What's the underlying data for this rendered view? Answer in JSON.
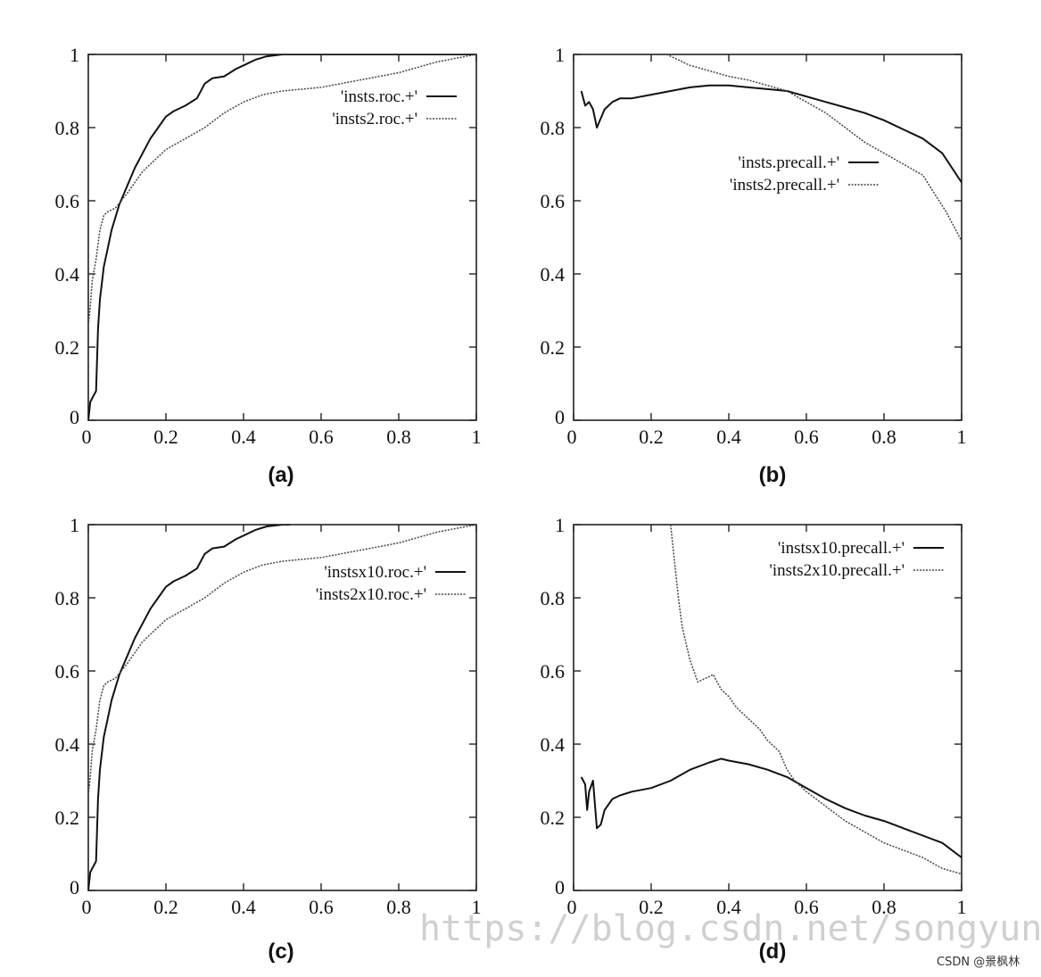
{
  "chart_data": [
    {
      "type": "line",
      "panel_label": "(a)",
      "xlim": [
        0,
        1
      ],
      "ylim": [
        0,
        1
      ],
      "xticks": [
        "0",
        "0.2",
        "0.4",
        "0.6",
        "0.8",
        "1"
      ],
      "yticks": [
        "0",
        "0.2",
        "0.4",
        "0.6",
        "0.8",
        "1"
      ],
      "legend_position": "top-right",
      "series": [
        {
          "name": "'insts.roc.+'",
          "style": "solid",
          "points": [
            [
              0,
              0
            ],
            [
              0.005,
              0.05
            ],
            [
              0.02,
              0.08
            ],
            [
              0.025,
              0.25
            ],
            [
              0.03,
              0.33
            ],
            [
              0.04,
              0.42
            ],
            [
              0.05,
              0.47
            ],
            [
              0.06,
              0.52
            ],
            [
              0.08,
              0.59
            ],
            [
              0.1,
              0.64
            ],
            [
              0.12,
              0.69
            ],
            [
              0.14,
              0.73
            ],
            [
              0.16,
              0.77
            ],
            [
              0.18,
              0.8
            ],
            [
              0.2,
              0.83
            ],
            [
              0.22,
              0.845
            ],
            [
              0.25,
              0.86
            ],
            [
              0.28,
              0.88
            ],
            [
              0.3,
              0.92
            ],
            [
              0.32,
              0.935
            ],
            [
              0.35,
              0.94
            ],
            [
              0.38,
              0.96
            ],
            [
              0.4,
              0.97
            ],
            [
              0.43,
              0.985
            ],
            [
              0.46,
              0.995
            ],
            [
              0.5,
              1
            ],
            [
              0.52,
              1
            ],
            [
              1,
              1
            ]
          ]
        },
        {
          "name": "'insts2.roc.+'",
          "style": "dotted",
          "points": [
            [
              0,
              0.26
            ],
            [
              0.005,
              0.31
            ],
            [
              0.01,
              0.38
            ],
            [
              0.02,
              0.44
            ],
            [
              0.03,
              0.52
            ],
            [
              0.04,
              0.56
            ],
            [
              0.05,
              0.57
            ],
            [
              0.07,
              0.58
            ],
            [
              0.1,
              0.62
            ],
            [
              0.12,
              0.65
            ],
            [
              0.14,
              0.68
            ],
            [
              0.16,
              0.7
            ],
            [
              0.2,
              0.74
            ],
            [
              0.25,
              0.77
            ],
            [
              0.3,
              0.8
            ],
            [
              0.35,
              0.84
            ],
            [
              0.4,
              0.87
            ],
            [
              0.45,
              0.89
            ],
            [
              0.5,
              0.9
            ],
            [
              0.6,
              0.91
            ],
            [
              0.7,
              0.93
            ],
            [
              0.8,
              0.95
            ],
            [
              0.9,
              0.98
            ],
            [
              0.95,
              0.99
            ],
            [
              1,
              1
            ]
          ]
        }
      ]
    },
    {
      "type": "line",
      "panel_label": "(b)",
      "xlim": [
        0,
        1
      ],
      "ylim": [
        0,
        1
      ],
      "xticks": [
        "0",
        "0.2",
        "0.4",
        "0.6",
        "0.8",
        "1"
      ],
      "yticks": [
        "0",
        "0.2",
        "0.4",
        "0.6",
        "0.8",
        "1"
      ],
      "legend_position": "center-right",
      "series": [
        {
          "name": "'insts.precall.+'",
          "style": "solid",
          "points": [
            [
              0.02,
              0.9
            ],
            [
              0.03,
              0.86
            ],
            [
              0.04,
              0.87
            ],
            [
              0.05,
              0.85
            ],
            [
              0.06,
              0.8
            ],
            [
              0.08,
              0.85
            ],
            [
              0.1,
              0.87
            ],
            [
              0.12,
              0.88
            ],
            [
              0.15,
              0.88
            ],
            [
              0.2,
              0.89
            ],
            [
              0.25,
              0.9
            ],
            [
              0.3,
              0.91
            ],
            [
              0.35,
              0.915
            ],
            [
              0.4,
              0.915
            ],
            [
              0.45,
              0.91
            ],
            [
              0.5,
              0.905
            ],
            [
              0.55,
              0.9
            ],
            [
              0.6,
              0.885
            ],
            [
              0.65,
              0.87
            ],
            [
              0.7,
              0.855
            ],
            [
              0.75,
              0.84
            ],
            [
              0.8,
              0.82
            ],
            [
              0.85,
              0.795
            ],
            [
              0.9,
              0.77
            ],
            [
              0.95,
              0.73
            ],
            [
              1,
              0.65
            ]
          ]
        },
        {
          "name": "'insts2.precall.+'",
          "style": "dotted",
          "points": [
            [
              0.24,
              1
            ],
            [
              0.26,
              0.99
            ],
            [
              0.3,
              0.97
            ],
            [
              0.35,
              0.955
            ],
            [
              0.4,
              0.94
            ],
            [
              0.45,
              0.93
            ],
            [
              0.5,
              0.915
            ],
            [
              0.55,
              0.9
            ],
            [
              0.6,
              0.87
            ],
            [
              0.65,
              0.84
            ],
            [
              0.7,
              0.8
            ],
            [
              0.75,
              0.76
            ],
            [
              0.8,
              0.73
            ],
            [
              0.85,
              0.7
            ],
            [
              0.9,
              0.67
            ],
            [
              0.93,
              0.62
            ],
            [
              0.96,
              0.57
            ],
            [
              0.98,
              0.53
            ],
            [
              1,
              0.49
            ]
          ]
        }
      ]
    },
    {
      "type": "line",
      "panel_label": "(c)",
      "xlim": [
        0,
        1
      ],
      "ylim": [
        0,
        1
      ],
      "xticks": [
        "0",
        "0.2",
        "0.4",
        "0.6",
        "0.8",
        "1"
      ],
      "yticks": [
        "0",
        "0.2",
        "0.4",
        "0.6",
        "0.8",
        "1"
      ],
      "legend_position": "top-right",
      "series": [
        {
          "name": "'instsx10.roc.+'",
          "style": "solid",
          "points": [
            [
              0,
              0
            ],
            [
              0.005,
              0.05
            ],
            [
              0.02,
              0.08
            ],
            [
              0.025,
              0.25
            ],
            [
              0.03,
              0.33
            ],
            [
              0.04,
              0.42
            ],
            [
              0.05,
              0.47
            ],
            [
              0.06,
              0.52
            ],
            [
              0.08,
              0.59
            ],
            [
              0.1,
              0.64
            ],
            [
              0.12,
              0.69
            ],
            [
              0.14,
              0.73
            ],
            [
              0.16,
              0.77
            ],
            [
              0.18,
              0.8
            ],
            [
              0.2,
              0.83
            ],
            [
              0.22,
              0.845
            ],
            [
              0.25,
              0.86
            ],
            [
              0.28,
              0.88
            ],
            [
              0.3,
              0.92
            ],
            [
              0.32,
              0.935
            ],
            [
              0.35,
              0.94
            ],
            [
              0.38,
              0.96
            ],
            [
              0.4,
              0.97
            ],
            [
              0.43,
              0.985
            ],
            [
              0.46,
              0.995
            ],
            [
              0.5,
              1
            ],
            [
              0.52,
              1
            ]
          ]
        },
        {
          "name": "'insts2x10.roc.+'",
          "style": "dotted",
          "points": [
            [
              0,
              0.26
            ],
            [
              0.005,
              0.31
            ],
            [
              0.01,
              0.38
            ],
            [
              0.02,
              0.44
            ],
            [
              0.03,
              0.52
            ],
            [
              0.04,
              0.56
            ],
            [
              0.05,
              0.57
            ],
            [
              0.07,
              0.58
            ],
            [
              0.1,
              0.62
            ],
            [
              0.12,
              0.65
            ],
            [
              0.14,
              0.68
            ],
            [
              0.16,
              0.7
            ],
            [
              0.2,
              0.74
            ],
            [
              0.25,
              0.77
            ],
            [
              0.3,
              0.8
            ],
            [
              0.35,
              0.84
            ],
            [
              0.4,
              0.87
            ],
            [
              0.45,
              0.89
            ],
            [
              0.5,
              0.9
            ],
            [
              0.6,
              0.91
            ],
            [
              0.7,
              0.93
            ],
            [
              0.8,
              0.95
            ],
            [
              0.9,
              0.98
            ],
            [
              0.95,
              0.99
            ],
            [
              1,
              1
            ]
          ]
        }
      ]
    },
    {
      "type": "line",
      "panel_label": "(d)",
      "xlim": [
        0,
        1
      ],
      "ylim": [
        0,
        1
      ],
      "xticks": [
        "0",
        "0.2",
        "0.4",
        "0.6",
        "0.8",
        "1"
      ],
      "yticks": [
        "0",
        "0.2",
        "0.4",
        "0.6",
        "0.8",
        "1"
      ],
      "legend_position": "top-right",
      "series": [
        {
          "name": "'instsx10.precall.+'",
          "style": "solid",
          "points": [
            [
              0.02,
              0.31
            ],
            [
              0.03,
              0.29
            ],
            [
              0.035,
              0.22
            ],
            [
              0.04,
              0.27
            ],
            [
              0.05,
              0.3
            ],
            [
              0.06,
              0.17
            ],
            [
              0.07,
              0.18
            ],
            [
              0.08,
              0.22
            ],
            [
              0.1,
              0.25
            ],
            [
              0.12,
              0.26
            ],
            [
              0.15,
              0.27
            ],
            [
              0.2,
              0.28
            ],
            [
              0.25,
              0.3
            ],
            [
              0.3,
              0.33
            ],
            [
              0.35,
              0.35
            ],
            [
              0.38,
              0.36
            ],
            [
              0.4,
              0.355
            ],
            [
              0.45,
              0.345
            ],
            [
              0.5,
              0.33
            ],
            [
              0.55,
              0.31
            ],
            [
              0.6,
              0.28
            ],
            [
              0.65,
              0.25
            ],
            [
              0.7,
              0.225
            ],
            [
              0.75,
              0.205
            ],
            [
              0.8,
              0.19
            ],
            [
              0.85,
              0.17
            ],
            [
              0.9,
              0.15
            ],
            [
              0.95,
              0.13
            ],
            [
              1,
              0.09
            ]
          ]
        },
        {
          "name": "'insts2x10.precall.+'",
          "style": "dotted",
          "points": [
            [
              0.25,
              1
            ],
            [
              0.26,
              0.9
            ],
            [
              0.27,
              0.8
            ],
            [
              0.28,
              0.72
            ],
            [
              0.3,
              0.63
            ],
            [
              0.32,
              0.57
            ],
            [
              0.34,
              0.58
            ],
            [
              0.36,
              0.59
            ],
            [
              0.38,
              0.55
            ],
            [
              0.4,
              0.53
            ],
            [
              0.42,
              0.5
            ],
            [
              0.45,
              0.47
            ],
            [
              0.48,
              0.44
            ],
            [
              0.5,
              0.41
            ],
            [
              0.53,
              0.38
            ],
            [
              0.55,
              0.33
            ],
            [
              0.57,
              0.3
            ],
            [
              0.6,
              0.27
            ],
            [
              0.65,
              0.23
            ],
            [
              0.7,
              0.19
            ],
            [
              0.75,
              0.16
            ],
            [
              0.8,
              0.13
            ],
            [
              0.85,
              0.11
            ],
            [
              0.9,
              0.09
            ],
            [
              0.95,
              0.06
            ],
            [
              1,
              0.045
            ]
          ]
        }
      ]
    }
  ],
  "watermark": "https://blog.csdn.net/songyunli1111",
  "credit": "CSDN @景枫林"
}
